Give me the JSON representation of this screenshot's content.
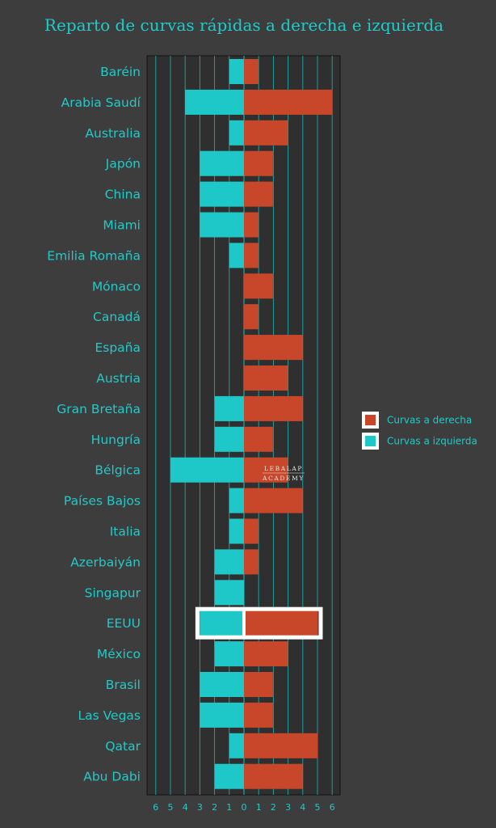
{
  "chart_data": {
    "type": "bar",
    "title": "Reparto de curvas rápidas a derecha e izquierda",
    "categories": [
      "Baréin",
      "Arabia Saudí",
      "Australia",
      "Japón",
      "China",
      "Miami",
      "Emilia Romaña",
      "Mónaco",
      "Canadá",
      "España",
      "Austria",
      "Gran Bretaña",
      "Hungría",
      "Bélgica",
      "Países Bajos",
      "Italia",
      "Azerbaiyán",
      "Singapur",
      "EEUU",
      "México",
      "Brasil",
      "Las Vegas",
      "Qatar",
      "Abu Dabi"
    ],
    "series": [
      {
        "name": "Curvas a derecha",
        "color": "#c8472a",
        "values": [
          1,
          6,
          3,
          2,
          2,
          1,
          1,
          2,
          1,
          4,
          3,
          4,
          2,
          3,
          4,
          1,
          1,
          0,
          5,
          3,
          2,
          2,
          5,
          4
        ]
      },
      {
        "name": "Curvas a izquierda",
        "color": "#1ec8c8",
        "values": [
          1,
          4,
          1,
          3,
          3,
          3,
          1,
          0,
          0,
          0,
          0,
          2,
          2,
          5,
          1,
          1,
          2,
          2,
          3,
          2,
          3,
          3,
          1,
          2
        ]
      }
    ],
    "xlim": [
      -6,
      6
    ],
    "x_ticks": [
      "6",
      "5",
      "4",
      "3",
      "2",
      "1",
      "0",
      "1",
      "2",
      "3",
      "4",
      "5",
      "6"
    ],
    "legend": "right",
    "grid": true,
    "highlighted_category": "EEUU"
  },
  "watermark": {
    "line1": "LEBALAP",
    "line2": "ACADEMY"
  },
  "colors": {
    "background": "#3d3d3d",
    "text": "#22c9c9",
    "right": "#c8472a",
    "left": "#1ec8c8",
    "plot_bg": "#2f2f2f",
    "grid": "#1ca8a8",
    "highlight": "#ffffff"
  }
}
